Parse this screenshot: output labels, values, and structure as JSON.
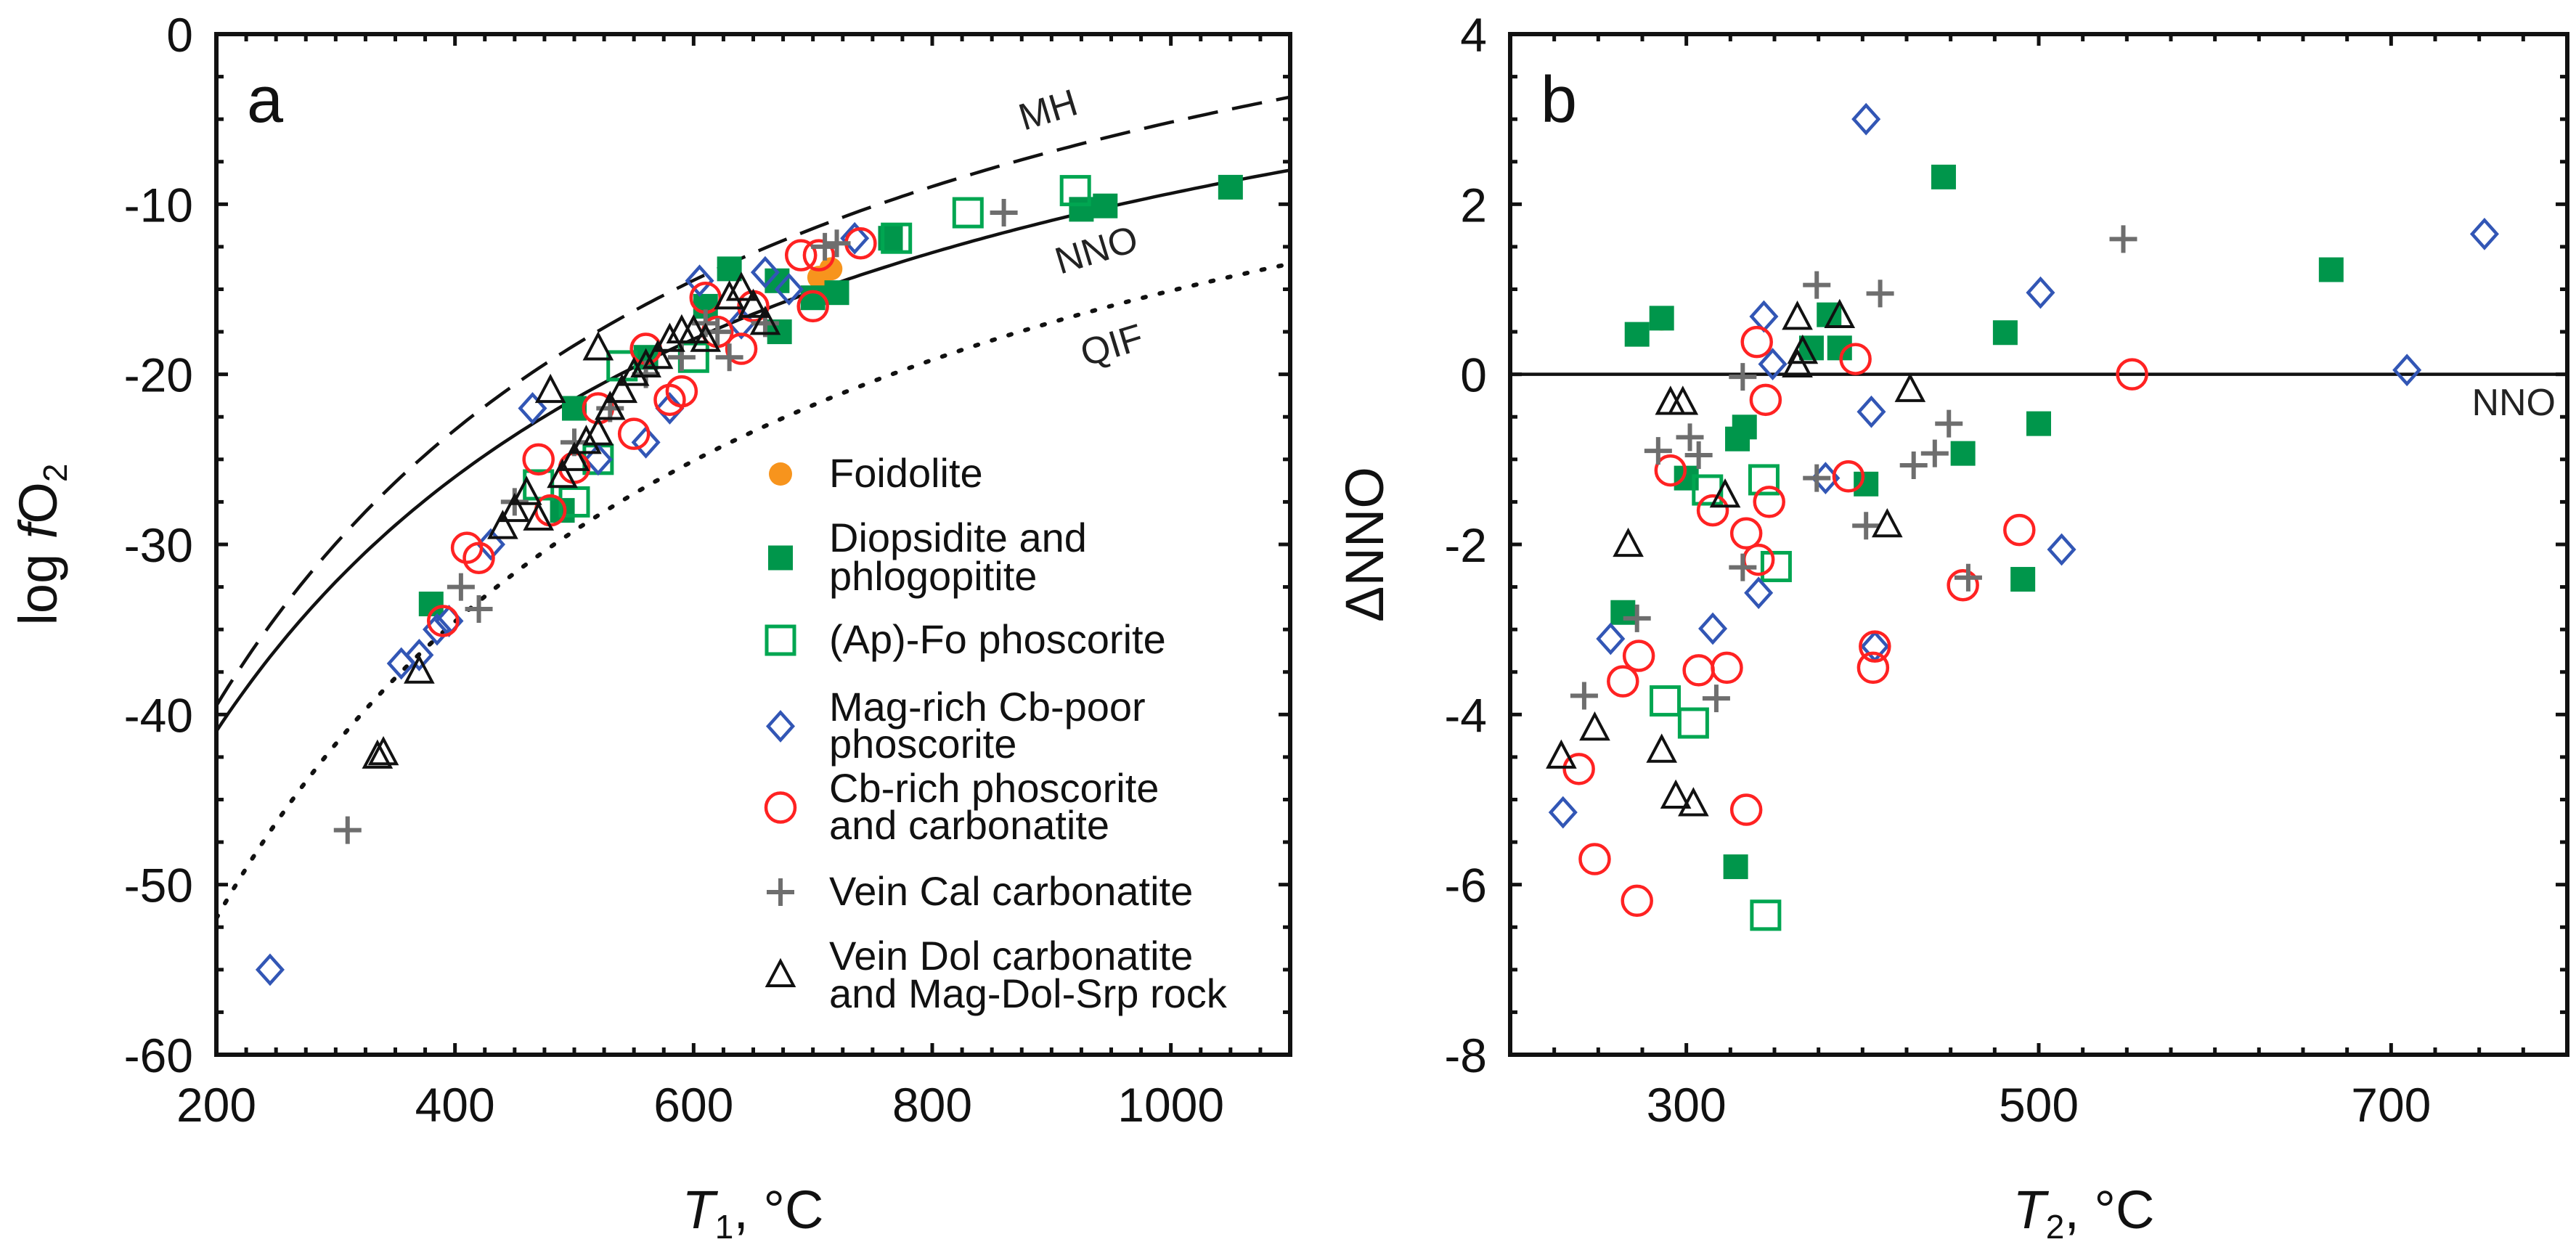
{
  "colors": {
    "foidolite": "#f7941d",
    "diopsidite": "#00964b",
    "apfo": "#00a651",
    "magrich": "#3256b5",
    "cbrich": "#ff2222",
    "veincal": "#6e6e6e",
    "veindol": "#111111"
  },
  "legend": [
    {
      "key": "foidolite",
      "marker": "filled-circle",
      "lines": [
        "Foidolite"
      ]
    },
    {
      "key": "diopsidite",
      "marker": "filled-square",
      "lines": [
        "Diopsidite and",
        "phlogopitite"
      ]
    },
    {
      "key": "apfo",
      "marker": "open-square",
      "lines": [
        "(Ap)-Fo phoscorite"
      ]
    },
    {
      "key": "magrich",
      "marker": "open-diamond",
      "lines": [
        "Mag-rich Cb-poor",
        "phoscorite"
      ]
    },
    {
      "key": "cbrich",
      "marker": "open-circle",
      "lines": [
        "Cb-rich phoscorite",
        "and carbonatite"
      ]
    },
    {
      "key": "veincal",
      "marker": "plus",
      "lines": [
        "Vein Cal carbonatite"
      ]
    },
    {
      "key": "veindol",
      "marker": "open-triangle",
      "lines": [
        "Vein Dol carbonatite",
        "and Mag-Dol-Srp rock"
      ]
    }
  ],
  "chart_data": [
    {
      "type": "scatter",
      "panel": "a",
      "xlabel": {
        "var": "T",
        "sub": "1",
        "unit": ", °C"
      },
      "ylabel": {
        "pre": "log ",
        "var": "f",
        "main": "O",
        "sub": "2"
      },
      "xlim": [
        200,
        1100
      ],
      "ylim": [
        -60,
        0
      ],
      "xticks": [
        200,
        400,
        600,
        800,
        1000
      ],
      "yticks": [
        0,
        -10,
        -20,
        -30,
        -40,
        -50,
        -60
      ],
      "legend_position": "bottom-right",
      "buffer_curves": [
        {
          "name": "MH",
          "style": "dashed",
          "formula": "logfO2 = A - B/(T+273.15)",
          "A": 15.11,
          "B": 25830
        },
        {
          "name": "NNO",
          "style": "solid",
          "formula": "logfO2 = A - B/(T+273.15)",
          "A": 9.34,
          "B": 23810
        },
        {
          "name": "QIF",
          "style": "dotted",
          "formula": "logfO2 = A - B/(T+273.15)",
          "A": 6.73,
          "B": 27778
        }
      ],
      "series": {
        "foidolite": [
          [
            715,
            -13.8
          ],
          [
            705,
            -14.3
          ]
        ],
        "diopsidite": [
          [
            380,
            -33.5
          ],
          [
            490,
            -28
          ],
          [
            500,
            -22
          ],
          [
            560,
            -19
          ],
          [
            610,
            -16
          ],
          [
            630,
            -13.8
          ],
          [
            670,
            -14.5
          ],
          [
            672,
            -17.5
          ],
          [
            700,
            -15.5
          ],
          [
            720,
            -15.2
          ],
          [
            765,
            -12
          ],
          [
            925,
            -10.3
          ],
          [
            945,
            -10.1
          ],
          [
            1050,
            -9
          ]
        ],
        "apfo": [
          [
            470,
            -26.5
          ],
          [
            500,
            -27.5
          ],
          [
            520,
            -25
          ],
          [
            540,
            -19.5
          ],
          [
            600,
            -19
          ],
          [
            770,
            -12
          ],
          [
            830,
            -10.5
          ],
          [
            920,
            -9.2
          ]
        ],
        "magrich": [
          [
            245,
            -55
          ],
          [
            355,
            -37
          ],
          [
            370,
            -36.5
          ],
          [
            385,
            -35
          ],
          [
            395,
            -34.5
          ],
          [
            430,
            -30
          ],
          [
            465,
            -22
          ],
          [
            520,
            -25
          ],
          [
            560,
            -24
          ],
          [
            580,
            -22
          ],
          [
            605,
            -14.5
          ],
          [
            640,
            -17
          ],
          [
            660,
            -14
          ],
          [
            680,
            -15
          ],
          [
            735,
            -12
          ]
        ],
        "cbrich": [
          [
            390,
            -34.5
          ],
          [
            410,
            -30.2
          ],
          [
            420,
            -30.8
          ],
          [
            470,
            -25
          ],
          [
            480,
            -28
          ],
          [
            500,
            -25.5
          ],
          [
            520,
            -22
          ],
          [
            550,
            -23.5
          ],
          [
            560,
            -18.5
          ],
          [
            580,
            -21.5
          ],
          [
            590,
            -21
          ],
          [
            610,
            -15.5
          ],
          [
            620,
            -17.5
          ],
          [
            640,
            -18.5
          ],
          [
            650,
            -16
          ],
          [
            690,
            -13
          ],
          [
            700,
            -16
          ],
          [
            705,
            -13
          ],
          [
            740,
            -12.3
          ]
        ],
        "veincal": [
          [
            310,
            -46.8
          ],
          [
            405,
            -32.5
          ],
          [
            420,
            -33.8
          ],
          [
            450,
            -27.5
          ],
          [
            500,
            -24
          ],
          [
            530,
            -22
          ],
          [
            560,
            -20
          ],
          [
            590,
            -19
          ],
          [
            610,
            -17
          ],
          [
            620,
            -17.5
          ],
          [
            630,
            -19
          ],
          [
            660,
            -17
          ],
          [
            710,
            -12.5
          ],
          [
            720,
            -12.3
          ],
          [
            860,
            -10.5
          ]
        ],
        "veindol": [
          [
            335,
            -42.5
          ],
          [
            340,
            -42.3
          ],
          [
            370,
            -37.5
          ],
          [
            440,
            -29
          ],
          [
            450,
            -28
          ],
          [
            460,
            -27
          ],
          [
            470,
            -28.5
          ],
          [
            480,
            -21
          ],
          [
            490,
            -26
          ],
          [
            500,
            -25
          ],
          [
            510,
            -24
          ],
          [
            520,
            -18.5
          ],
          [
            520,
            -23.5
          ],
          [
            530,
            -22
          ],
          [
            540,
            -21
          ],
          [
            550,
            -20
          ],
          [
            560,
            -19.5
          ],
          [
            570,
            -19
          ],
          [
            580,
            -18
          ],
          [
            590,
            -17.5
          ],
          [
            600,
            -17.5
          ],
          [
            610,
            -18
          ],
          [
            630,
            -15.5
          ],
          [
            640,
            -15
          ],
          [
            650,
            -16
          ],
          [
            660,
            -17
          ]
        ]
      },
      "panel_label": "a"
    },
    {
      "type": "scatter",
      "panel": "b",
      "xlabel": {
        "var": "T",
        "sub": "2",
        "unit": ", °C"
      },
      "ylabel": {
        "text": "ΔNNO"
      },
      "xlim": [
        200,
        800
      ],
      "ylim": [
        -8,
        4
      ],
      "xticks": [
        300,
        500,
        700
      ],
      "yticks": [
        4,
        2,
        0,
        -2,
        -4,
        -6,
        -8
      ],
      "reference_line": {
        "name": "NNO",
        "y": 0
      },
      "series": {
        "foidolite": [
          [
            286,
            0.65
          ]
        ],
        "diopsidite": [
          [
            272,
            0.47
          ],
          [
            286,
            0.66
          ],
          [
            264,
            -2.8
          ],
          [
            300,
            -1.22
          ],
          [
            328,
            -5.79
          ],
          [
            329,
            -0.76
          ],
          [
            333,
            -0.62
          ],
          [
            371,
            0.31
          ],
          [
            381,
            0.7
          ],
          [
            387,
            0.31
          ],
          [
            402,
            -1.29
          ],
          [
            446,
            2.32
          ],
          [
            457,
            -0.93
          ],
          [
            481,
            0.49
          ],
          [
            491,
            -2.41
          ],
          [
            500,
            -0.58
          ],
          [
            666,
            1.23
          ]
        ],
        "apfo": [
          [
            288,
            -3.84
          ],
          [
            304,
            -4.1
          ],
          [
            312,
            -1.36
          ],
          [
            344,
            -1.24
          ],
          [
            345,
            -6.36
          ],
          [
            351,
            -2.26
          ]
        ],
        "magrich": [
          [
            230,
            -5.15
          ],
          [
            257,
            -3.11
          ],
          [
            315,
            -2.99
          ],
          [
            341,
            -2.57
          ],
          [
            344,
            0.68
          ],
          [
            349,
            0.12
          ],
          [
            379,
            -1.22
          ],
          [
            402,
            3.0
          ],
          [
            405,
            -0.44
          ],
          [
            407,
            -3.2
          ],
          [
            501,
            0.96
          ],
          [
            513,
            -2.06
          ],
          [
            709,
            0.05
          ],
          [
            753,
            1.65
          ]
        ],
        "cbrich": [
          [
            239,
            -4.64
          ],
          [
            248,
            -5.7
          ],
          [
            264,
            -3.61
          ],
          [
            272,
            -6.19
          ],
          [
            273,
            -3.31
          ],
          [
            291,
            -1.13
          ],
          [
            307,
            -3.48
          ],
          [
            315,
            -1.6
          ],
          [
            323,
            -3.45
          ],
          [
            334,
            -1.87
          ],
          [
            334,
            -5.12
          ],
          [
            340,
            0.38
          ],
          [
            341,
            -2.18
          ],
          [
            345,
            -0.3
          ],
          [
            347,
            -1.5
          ],
          [
            392,
            -1.2
          ],
          [
            396,
            0.18
          ],
          [
            406,
            -3.45
          ],
          [
            407,
            -3.2
          ],
          [
            457,
            -2.48
          ],
          [
            489,
            -1.83
          ],
          [
            553,
            0.0
          ]
        ],
        "veincal": [
          [
            242,
            -3.78
          ],
          [
            272,
            -2.87
          ],
          [
            284,
            -0.9
          ],
          [
            302,
            -0.74
          ],
          [
            307,
            -0.95
          ],
          [
            317,
            -3.81
          ],
          [
            332,
            -0.03
          ],
          [
            332,
            -2.27
          ],
          [
            374,
            1.05
          ],
          [
            374,
            -1.22
          ],
          [
            402,
            -1.78
          ],
          [
            410,
            0.95
          ],
          [
            429,
            -1.07
          ],
          [
            441,
            -0.93
          ],
          [
            449,
            -0.58
          ],
          [
            460,
            -2.39
          ],
          [
            548,
            1.59
          ]
        ],
        "veindol": [
          [
            229,
            -4.5
          ],
          [
            248,
            -4.17
          ],
          [
            267,
            -2.01
          ],
          [
            286,
            -4.43
          ],
          [
            291,
            -0.34
          ],
          [
            294,
            -4.97
          ],
          [
            298,
            -0.34
          ],
          [
            304,
            -5.06
          ],
          [
            322,
            -1.43
          ],
          [
            363,
            0.66
          ],
          [
            363,
            0.1
          ],
          [
            366,
            0.26
          ],
          [
            387,
            0.68
          ],
          [
            414,
            -1.78
          ],
          [
            427,
            -0.19
          ]
        ]
      },
      "panel_label": "b"
    }
  ]
}
